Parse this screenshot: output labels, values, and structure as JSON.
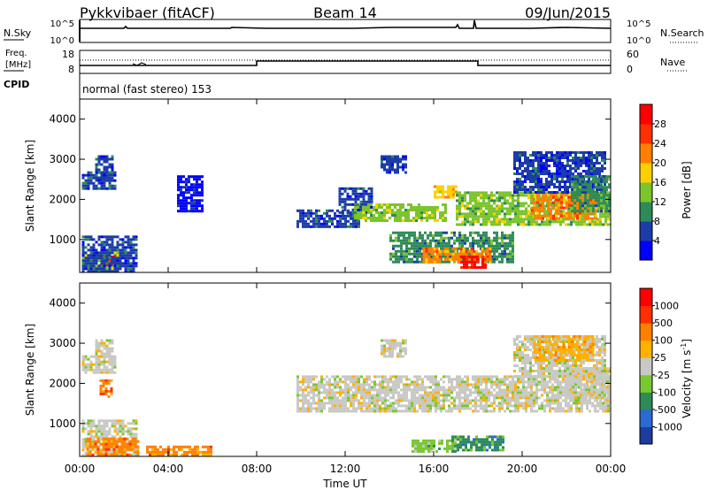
{
  "header": {
    "station": "Pykkvibaer (fitACF)",
    "beam": "Beam 14",
    "date": "09/Jun/2015"
  },
  "status_panels": {
    "nsky_label": "N.Sky",
    "nsearch_label": "N.Search",
    "nsky_ticks": [
      "10^5",
      "10^0"
    ],
    "nsearch_ticks": [
      "10^5",
      "10^0"
    ],
    "freq_label_top": "Freq.",
    "freq_label_bottom": "[MHz]",
    "freq_ticks": [
      "18",
      "8"
    ],
    "nave_label": "Nave",
    "nave_ticks": [
      "60",
      "0"
    ],
    "cpid_label": "CPID",
    "cpid_text": "normal (fast stereo) 153"
  },
  "chart_data": [
    {
      "type": "heatmap",
      "name": "power",
      "xlabel": "",
      "ylabel": "Slant Range [km]",
      "xlim": [
        0,
        24
      ],
      "ylim": [
        180,
        4500
      ],
      "y_ticks": [
        "1000",
        "2000",
        "3000",
        "4000"
      ],
      "colorbar": {
        "label": "Power [dB]",
        "levels": [
          "4",
          "8",
          "12",
          "16",
          "20",
          "24",
          "28"
        ],
        "colors": [
          "#0000ff",
          "#1c3ca8",
          "#2e8b57",
          "#7cc42c",
          "#ffd000",
          "#ff8000",
          "#ff3000",
          "#ff0000"
        ]
      },
      "regions": [
        {
          "t": [
            0.1,
            1.8
          ],
          "r": [
            300,
            700
          ],
          "level": 3
        },
        {
          "t": [
            0.9,
            1.7
          ],
          "r": [
            350,
            600
          ],
          "level": 7
        },
        {
          "t": [
            0.1,
            2.6
          ],
          "r": [
            220,
            1100
          ],
          "level": 1
        },
        {
          "t": [
            0.1,
            1.6
          ],
          "r": [
            2250,
            2700
          ],
          "level": 1
        },
        {
          "t": [
            0.7,
            1.5
          ],
          "r": [
            2500,
            3100
          ],
          "level": 1
        },
        {
          "t": [
            4.4,
            5.6
          ],
          "r": [
            1700,
            2600
          ],
          "level": 0
        },
        {
          "t": [
            9.8,
            12.6
          ],
          "r": [
            1350,
            1750
          ],
          "level": 1
        },
        {
          "t": [
            11.7,
            13.2
          ],
          "r": [
            1650,
            2300
          ],
          "level": 1
        },
        {
          "t": [
            13.6,
            14.7
          ],
          "r": [
            2700,
            3100
          ],
          "level": 1
        },
        {
          "t": [
            12.4,
            16.6
          ],
          "r": [
            1450,
            1900
          ],
          "level": 3
        },
        {
          "t": [
            16.0,
            17.0
          ],
          "r": [
            2050,
            2350
          ],
          "level": 4
        },
        {
          "t": [
            14.0,
            19.6
          ],
          "r": [
            450,
            1200
          ],
          "level": 2
        },
        {
          "t": [
            15.5,
            18.6
          ],
          "r": [
            450,
            800
          ],
          "level": 5
        },
        {
          "t": [
            17.2,
            18.4
          ],
          "r": [
            300,
            600
          ],
          "level": 7
        },
        {
          "t": [
            17.0,
            24.0
          ],
          "r": [
            1400,
            2200
          ],
          "level": 3
        },
        {
          "t": [
            20.4,
            23.4
          ],
          "r": [
            1550,
            2150
          ],
          "level": 5
        },
        {
          "t": [
            19.6,
            23.8
          ],
          "r": [
            2200,
            3200
          ],
          "level": 1
        },
        {
          "t": [
            22.2,
            24.0
          ],
          "r": [
            1700,
            2600
          ],
          "level": 2
        }
      ]
    },
    {
      "type": "heatmap",
      "name": "velocity",
      "xlabel": "Time UT",
      "ylabel": "Slant Range [km]",
      "xlim": [
        0,
        24
      ],
      "ylim": [
        180,
        4500
      ],
      "x_ticks": [
        "00:00",
        "04:00",
        "08:00",
        "12:00",
        "16:00",
        "20:00",
        "00:00"
      ],
      "y_ticks": [
        "1000",
        "2000",
        "3000",
        "4000"
      ],
      "colorbar": {
        "label": "Velocity [m s",
        "label_sup": "-1",
        "label_tail": "]",
        "levels": [
          "1000",
          "500",
          "100",
          "25",
          "-25",
          "-100",
          "-500",
          "-1000"
        ],
        "colors": [
          "#1e3ca0",
          "#2a6ad2",
          "#2e8b57",
          "#78c830",
          "#c8c8c4",
          "#ffb000",
          "#ff8000",
          "#ff3000",
          "#ff0000"
        ]
      },
      "regions": [
        {
          "t": [
            0.1,
            2.6
          ],
          "r": [
            220,
            1100
          ],
          "level": 4
        },
        {
          "t": [
            0.3,
            2.6
          ],
          "r": [
            250,
            650
          ],
          "level": 6
        },
        {
          "t": [
            0.1,
            1.6
          ],
          "r": [
            2250,
            2700
          ],
          "level": 4
        },
        {
          "t": [
            0.7,
            1.5
          ],
          "r": [
            2500,
            3100
          ],
          "level": 4
        },
        {
          "t": [
            0.9,
            1.5
          ],
          "r": [
            1700,
            2100
          ],
          "level": 6
        },
        {
          "t": [
            3.0,
            6.0
          ],
          "r": [
            250,
            450
          ],
          "level": 6
        },
        {
          "t": [
            9.8,
            24.0
          ],
          "r": [
            1300,
            2200
          ],
          "level": 4
        },
        {
          "t": [
            13.6,
            14.7
          ],
          "r": [
            2700,
            3100
          ],
          "level": 4
        },
        {
          "t": [
            16.8,
            19.2
          ],
          "r": [
            350,
            700
          ],
          "level": 2
        },
        {
          "t": [
            15.0,
            17.0
          ],
          "r": [
            300,
            600
          ],
          "level": 3
        },
        {
          "t": [
            19.6,
            23.8
          ],
          "r": [
            2200,
            3200
          ],
          "level": 4
        },
        {
          "t": [
            20.5,
            23.2
          ],
          "r": [
            2600,
            3200
          ],
          "level": 5
        },
        {
          "t": [
            22.0,
            24.0
          ],
          "r": [
            1600,
            2400
          ],
          "level": 4
        }
      ]
    }
  ]
}
